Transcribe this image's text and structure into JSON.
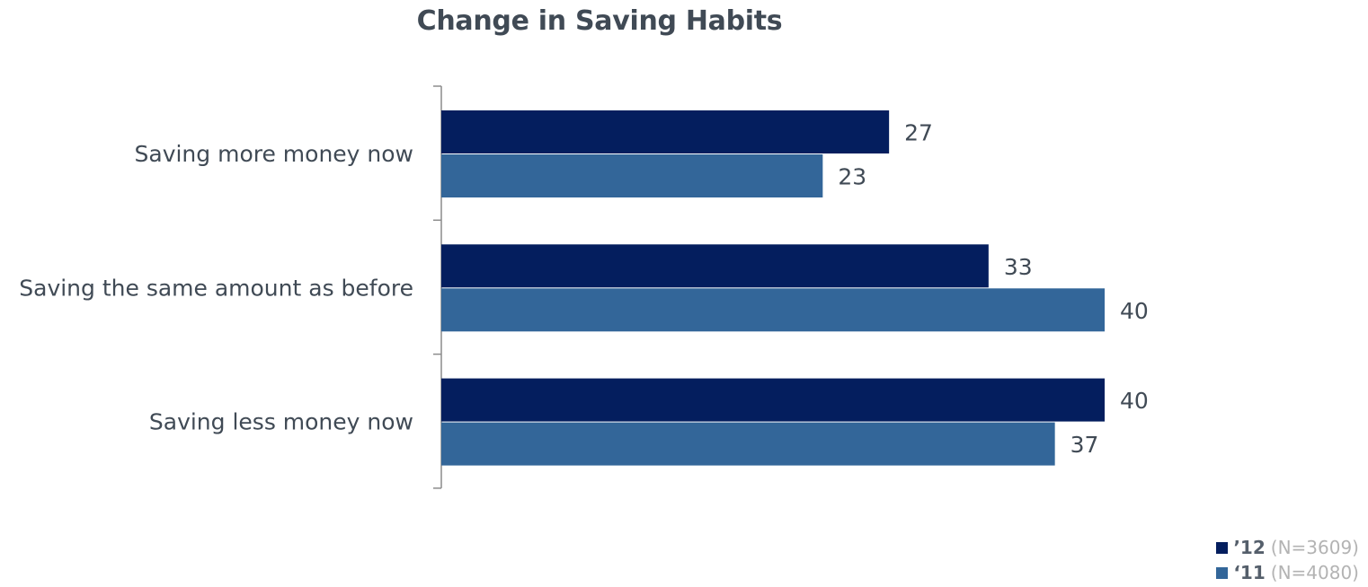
{
  "chart_data": {
    "type": "bar",
    "orientation": "horizontal",
    "title": "Change in Saving Habits",
    "categories": [
      "Saving more money now",
      "Saving the same amount as before",
      "Saving less money now"
    ],
    "series": [
      {
        "name": "’12",
        "n_label": "(N=3609)",
        "color": "#041e5e",
        "values": [
          27,
          33,
          40
        ]
      },
      {
        "name": "‘11",
        "n_label": "(N=4080)",
        "color": "#336699",
        "values": [
          23,
          40,
          37
        ]
      }
    ],
    "xlim": [
      0,
      40
    ],
    "grid": false,
    "data_labels": true,
    "legend_position": "bottom-right"
  }
}
